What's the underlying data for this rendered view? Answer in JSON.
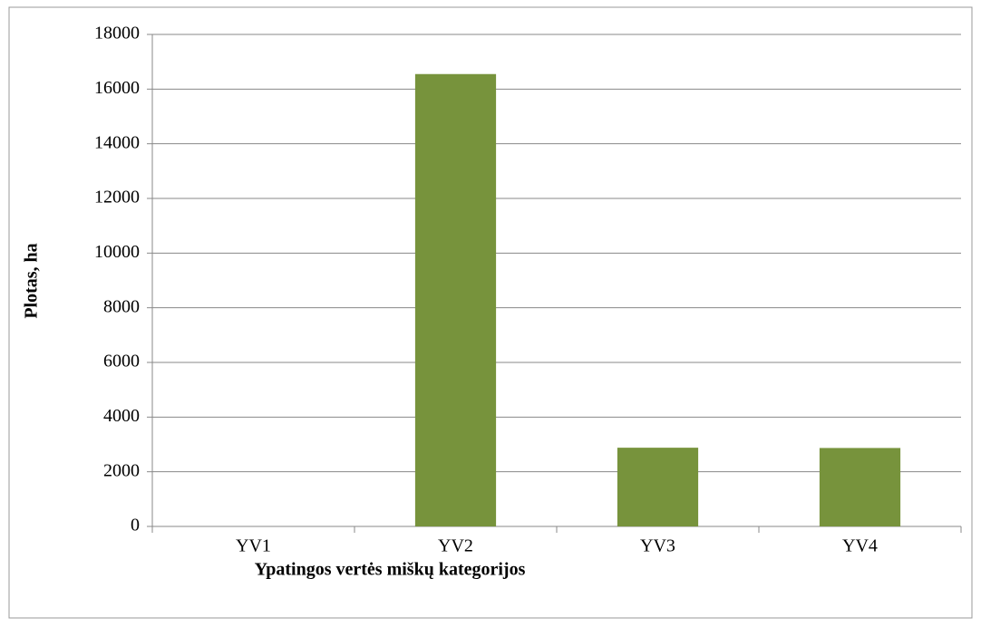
{
  "chart_data": {
    "type": "bar",
    "x_label": "Ypatingos vertės miškų kategorijos",
    "y_label": "Plotas, ha",
    "categories": [
      "YV1",
      "YV2",
      "YV3",
      "YV4"
    ],
    "values": [
      0,
      16550,
      2880,
      2870
    ],
    "color": "#77933c",
    "ylim": [
      0,
      18000
    ],
    "yticks": [
      0,
      2000,
      4000,
      6000,
      8000,
      10000,
      12000,
      14000,
      16000,
      18000
    ],
    "grid": true
  }
}
